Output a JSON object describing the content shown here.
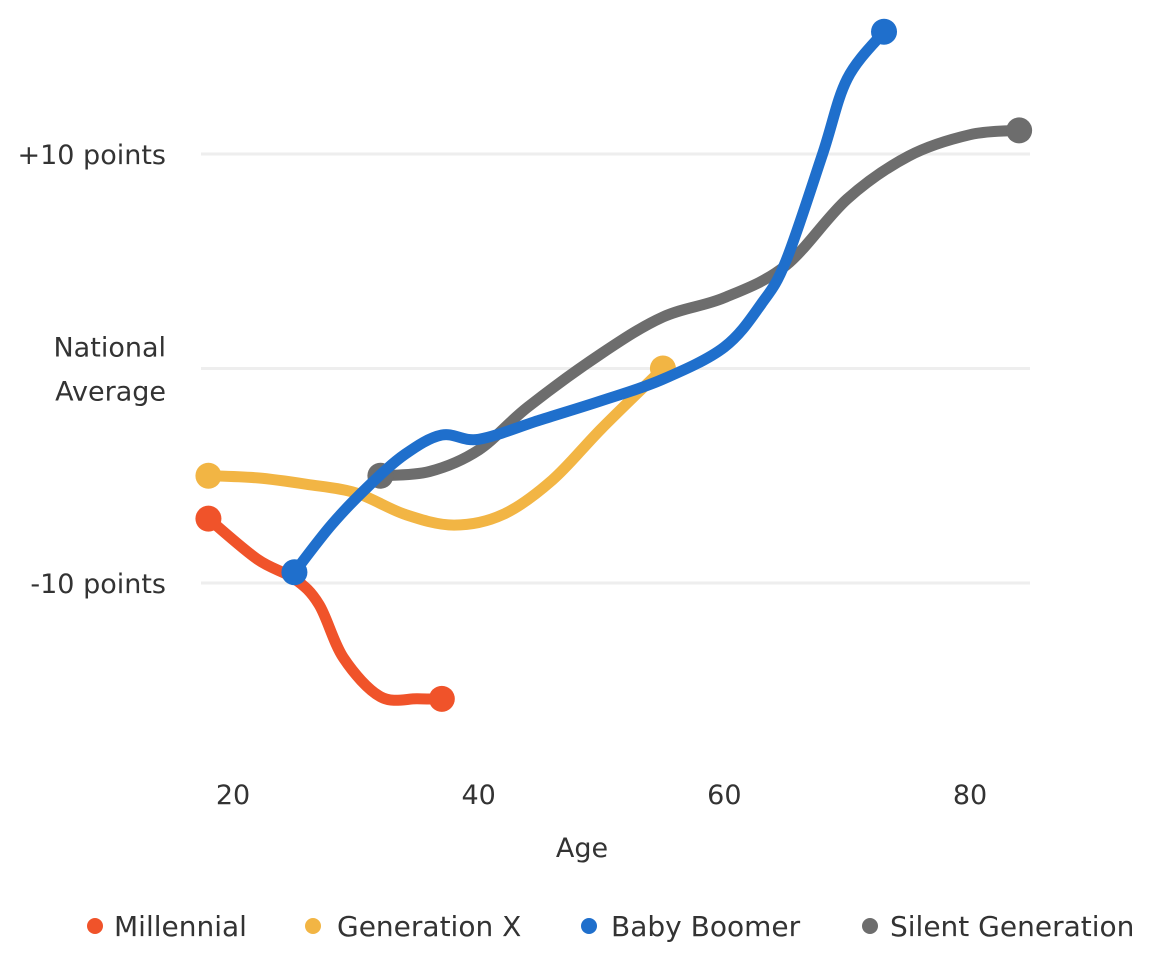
{
  "chart_data": {
    "type": "line",
    "title": "",
    "xlabel": "Age",
    "ylabel": "",
    "xlim": [
      18,
      84
    ],
    "ylim": [
      -18,
      17
    ],
    "grid": true,
    "x_ticks": [
      {
        "value": 20,
        "label": "20"
      },
      {
        "value": 40,
        "label": "40"
      },
      {
        "value": 60,
        "label": "60"
      },
      {
        "value": 80,
        "label": "80"
      }
    ],
    "y_ticks": [
      {
        "value": 10,
        "lines": [
          "+10 points"
        ]
      },
      {
        "value": 0,
        "lines": [
          "National",
          "Average"
        ]
      },
      {
        "value": -10,
        "lines": [
          "-10 points"
        ]
      }
    ],
    "legend_position": "bottom",
    "series": [
      {
        "name": "Millennial",
        "color": "#f0532a",
        "x": [
          18,
          22,
          25,
          27,
          29,
          32,
          35,
          37
        ],
        "y": [
          -7,
          -8.9,
          -9.8,
          -11.0,
          -13.5,
          -15.3,
          -15.4,
          -15.4
        ]
      },
      {
        "name": "Generation X",
        "color": "#f2b544",
        "x": [
          18,
          22,
          26,
          30,
          34,
          38,
          42,
          46,
          50,
          55
        ],
        "y": [
          -5,
          -5.1,
          -5.4,
          -5.8,
          -6.8,
          -7.3,
          -6.8,
          -5.2,
          -2.8,
          0
        ]
      },
      {
        "name": "Baby Boomer",
        "color": "#1f6fcc",
        "x": [
          25,
          28,
          31,
          34,
          37,
          40,
          45,
          50,
          55,
          60,
          63,
          65,
          68,
          70,
          73
        ],
        "y": [
          -9.5,
          -7.3,
          -5.5,
          -4.0,
          -3.1,
          -3.3,
          -2.4,
          -1.5,
          -0.5,
          1.0,
          3.0,
          5.0,
          10.0,
          13.5,
          15.7
        ]
      },
      {
        "name": "Silent Generation",
        "color": "#6d6d6d",
        "x": [
          32,
          36,
          40,
          44,
          50,
          55,
          60,
          65,
          70,
          75,
          80,
          84
        ],
        "y": [
          -5,
          -4.8,
          -3.8,
          -1.8,
          0.7,
          2.4,
          3.3,
          4.8,
          7.9,
          9.9,
          10.9,
          11.1
        ]
      }
    ]
  }
}
